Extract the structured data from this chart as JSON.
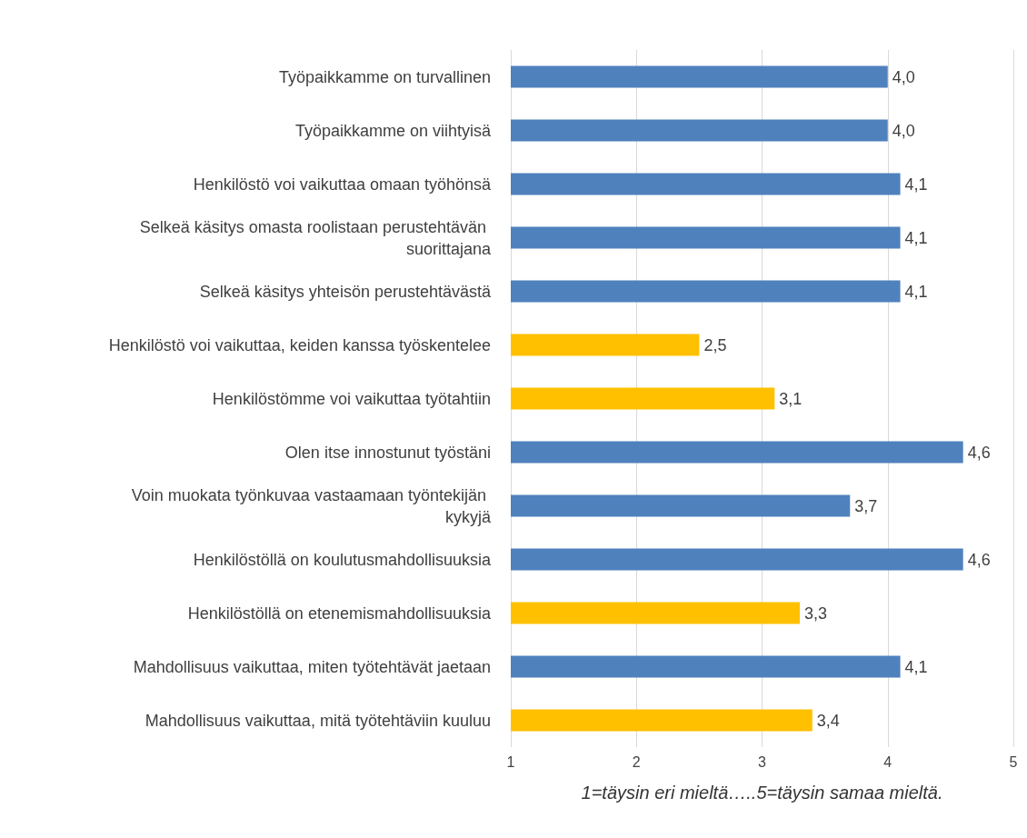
{
  "chart_data": {
    "type": "bar",
    "orientation": "horizontal",
    "categories": [
      "Työpaikkamme on turvallinen",
      "Työpaikkamme on viihtyisä",
      "Henkilöstö voi vaikuttaa omaan työhönsä",
      "Selkeä käsitys omasta roolistaan perustehtävän suorittajana",
      "Selkeä käsitys yhteisön perustehtävästä",
      "Henkilöstö voi vaikuttaa, keiden kanssa työskentelee",
      "Henkilöstömme voi vaikuttaa työtahtiin",
      "Olen itse innostunut työstäni",
      "Voin muokata työnkuvaa vastaamaan työntekijän kykyjä",
      "Henkilöstöllä on koulutusmahdollisuuksia",
      "Henkilöstöllä on etenemismahdollisuuksia",
      "Mahdollisuus vaikuttaa, miten työtehtävät jaetaan",
      "Mahdollisuus vaikuttaa, mitä työtehtäviin kuuluu"
    ],
    "values": [
      4.0,
      4.0,
      4.1,
      4.1,
      4.1,
      2.5,
      3.1,
      4.6,
      3.7,
      4.6,
      3.3,
      4.1,
      3.4
    ],
    "value_labels": [
      "4,0",
      "4,0",
      "4,1",
      "4,1",
      "4,1",
      "2,5",
      "3,1",
      "4,6",
      "3,7",
      "4,6",
      "3,3",
      "4,1",
      "3,4"
    ],
    "colors": [
      "#4f81bd",
      "#4f81bd",
      "#4f81bd",
      "#4f81bd",
      "#4f81bd",
      "#ffc000",
      "#ffc000",
      "#4f81bd",
      "#4f81bd",
      "#4f81bd",
      "#ffc000",
      "#4f81bd",
      "#ffc000"
    ],
    "xlim": [
      1,
      5
    ],
    "xticks": [
      1,
      2,
      3,
      4,
      5
    ],
    "grid": "x",
    "xlabel": "1=täysin eri mieltä…..5=täysin samaa mieltä."
  }
}
